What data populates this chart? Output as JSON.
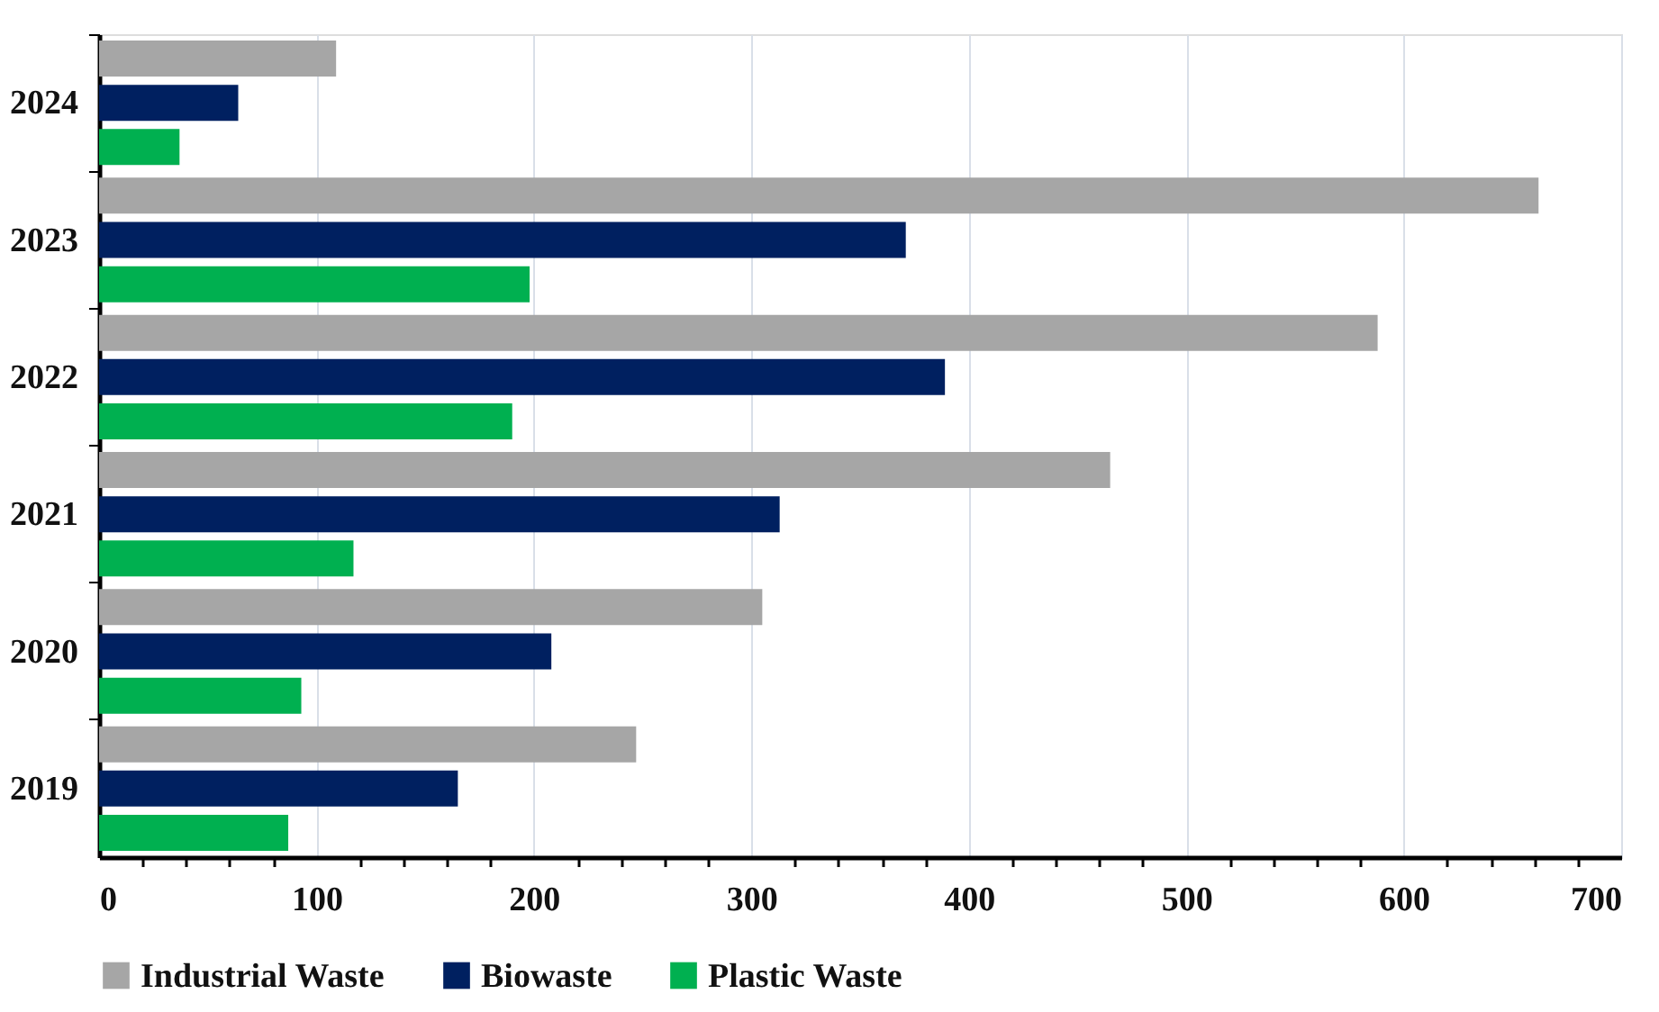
{
  "chart_data": {
    "type": "bar",
    "orientation": "horizontal",
    "categories": [
      "2024",
      "2023",
      "2022",
      "2021",
      "2020",
      "2019"
    ],
    "series": [
      {
        "name": "Industrial Waste",
        "color": "#a6a6a6",
        "values": [
          109,
          662,
          588,
          465,
          305,
          247
        ]
      },
      {
        "name": "Biowaste",
        "color": "#002060",
        "values": [
          64,
          371,
          389,
          313,
          208,
          165
        ]
      },
      {
        "name": "Plastic Waste",
        "color": "#00b050",
        "values": [
          37,
          198,
          190,
          117,
          93,
          87
        ]
      }
    ],
    "xlim": [
      0,
      700
    ],
    "xticks": [
      0,
      {
        "value": 20,
        "label": null
      },
      {
        "value": 40,
        "label": null
      },
      {
        "value": 60,
        "label": null
      },
      {
        "value": 80,
        "label": null
      },
      100,
      {
        "value": 120,
        "label": null
      },
      {
        "value": 140,
        "label": null
      },
      {
        "value": 160,
        "label": null
      },
      {
        "value": 180,
        "label": null
      },
      200,
      {
        "value": 220,
        "label": null
      },
      {
        "value": 240,
        "label": null
      },
      {
        "value": 260,
        "label": null
      },
      {
        "value": 280,
        "label": null
      },
      300,
      {
        "value": 320,
        "label": null
      },
      {
        "value": 340,
        "label": null
      },
      {
        "value": 360,
        "label": null
      },
      {
        "value": 380,
        "label": null
      },
      400,
      {
        "value": 420,
        "label": null
      },
      {
        "value": 440,
        "label": null
      },
      {
        "value": 460,
        "label": null
      },
      {
        "value": 480,
        "label": null
      },
      500,
      {
        "value": 520,
        "label": null
      },
      {
        "value": 540,
        "label": null
      },
      {
        "value": 560,
        "label": null
      },
      {
        "value": 580,
        "label": null
      },
      600,
      {
        "value": 620,
        "label": null
      },
      {
        "value": 640,
        "label": null
      },
      {
        "value": 660,
        "label": null
      },
      {
        "value": 680,
        "label": null
      },
      700
    ],
    "grid": "x",
    "legend": "bottom"
  }
}
